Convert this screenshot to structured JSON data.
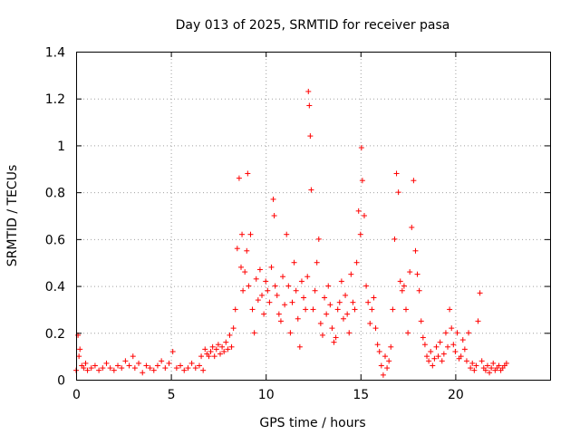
{
  "chart_data": {
    "type": "scatter",
    "title": "Day 013 of 2025, SRMTID for receiver pasa",
    "xlabel": "GPS time / hours",
    "ylabel": "SRMTID / TECUs",
    "xlim": [
      0,
      25
    ],
    "ylim": [
      0,
      1.4
    ],
    "xticks": [
      0,
      5,
      10,
      15,
      20
    ],
    "xtick_labels": [
      "0",
      "5",
      "10",
      "15",
      "20"
    ],
    "yticks": [
      0,
      0.2,
      0.4,
      0.6,
      0.8,
      1.0,
      1.2,
      1.4
    ],
    "ytick_labels": [
      "0",
      "0.2",
      "0.4",
      "0.6",
      "0.8",
      "1",
      "1.2",
      "1.4"
    ],
    "grid": true,
    "marker": "+",
    "series": [
      {
        "name": "SRMTID",
        "color": "#ff0000",
        "x": [
          0.0,
          0.1,
          0.15,
          0.2,
          0.3,
          0.4,
          0.5,
          0.6,
          0.8,
          1.0,
          1.2,
          1.4,
          1.6,
          1.8,
          2.0,
          2.2,
          2.4,
          2.6,
          2.8,
          3.0,
          3.1,
          3.3,
          3.5,
          3.7,
          3.9,
          4.1,
          4.3,
          4.5,
          4.7,
          4.9,
          5.1,
          5.3,
          5.5,
          5.7,
          5.9,
          6.1,
          6.3,
          6.5,
          6.6,
          6.7,
          6.8,
          6.9,
          7.0,
          7.1,
          7.2,
          7.3,
          7.4,
          7.5,
          7.6,
          7.7,
          7.8,
          7.9,
          8.0,
          8.1,
          8.2,
          8.3,
          8.4,
          8.5,
          8.6,
          8.7,
          8.75,
          8.8,
          8.9,
          9.0,
          9.05,
          9.1,
          9.2,
          9.3,
          9.4,
          9.5,
          9.6,
          9.7,
          9.8,
          9.9,
          10.0,
          10.1,
          10.2,
          10.3,
          10.4,
          10.45,
          10.5,
          10.6,
          10.7,
          10.8,
          10.9,
          11.0,
          11.1,
          11.2,
          11.3,
          11.4,
          11.5,
          11.6,
          11.7,
          11.8,
          11.9,
          12.0,
          12.1,
          12.2,
          12.25,
          12.3,
          12.35,
          12.4,
          12.5,
          12.6,
          12.7,
          12.8,
          12.9,
          13.0,
          13.1,
          13.2,
          13.3,
          13.4,
          13.5,
          13.6,
          13.7,
          13.8,
          13.9,
          14.0,
          14.1,
          14.2,
          14.3,
          14.4,
          14.5,
          14.6,
          14.7,
          14.8,
          14.9,
          15.0,
          15.05,
          15.1,
          15.2,
          15.3,
          15.4,
          15.5,
          15.6,
          15.7,
          15.8,
          15.9,
          16.0,
          16.1,
          16.2,
          16.3,
          16.4,
          16.5,
          16.6,
          16.7,
          16.8,
          16.9,
          17.0,
          17.1,
          17.2,
          17.3,
          17.4,
          17.5,
          17.6,
          17.7,
          17.8,
          17.9,
          18.0,
          18.1,
          18.2,
          18.3,
          18.4,
          18.5,
          18.6,
          18.7,
          18.8,
          18.9,
          19.0,
          19.1,
          19.2,
          19.3,
          19.4,
          19.5,
          19.6,
          19.7,
          19.8,
          19.9,
          20.0,
          20.1,
          20.2,
          20.3,
          20.4,
          20.5,
          20.6,
          20.7,
          20.8,
          20.9,
          21.0,
          21.1,
          21.2,
          21.3,
          21.4,
          21.5,
          21.6,
          21.7,
          21.8,
          21.9,
          22.0,
          22.1,
          22.2,
          22.3,
          22.4,
          22.5,
          22.6,
          22.7
        ],
        "y": [
          0.04,
          0.19,
          0.1,
          0.13,
          0.06,
          0.05,
          0.07,
          0.04,
          0.05,
          0.06,
          0.04,
          0.05,
          0.07,
          0.05,
          0.04,
          0.06,
          0.05,
          0.08,
          0.06,
          0.1,
          0.05,
          0.07,
          0.03,
          0.06,
          0.05,
          0.04,
          0.06,
          0.08,
          0.05,
          0.07,
          0.12,
          0.05,
          0.06,
          0.04,
          0.05,
          0.07,
          0.05,
          0.06,
          0.1,
          0.04,
          0.13,
          0.11,
          0.1,
          0.12,
          0.14,
          0.1,
          0.13,
          0.15,
          0.11,
          0.14,
          0.12,
          0.16,
          0.13,
          0.19,
          0.14,
          0.22,
          0.3,
          0.56,
          0.86,
          0.48,
          0.62,
          0.38,
          0.46,
          0.55,
          0.88,
          0.4,
          0.62,
          0.3,
          0.2,
          0.43,
          0.34,
          0.47,
          0.36,
          0.28,
          0.42,
          0.38,
          0.33,
          0.48,
          0.77,
          0.7,
          0.4,
          0.36,
          0.28,
          0.25,
          0.44,
          0.32,
          0.62,
          0.4,
          0.2,
          0.33,
          0.5,
          0.38,
          0.26,
          0.14,
          0.42,
          0.35,
          0.3,
          0.44,
          1.23,
          1.17,
          1.04,
          0.81,
          0.3,
          0.38,
          0.5,
          0.6,
          0.24,
          0.19,
          0.35,
          0.28,
          0.4,
          0.32,
          0.22,
          0.16,
          0.18,
          0.3,
          0.33,
          0.42,
          0.26,
          0.36,
          0.28,
          0.2,
          0.45,
          0.33,
          0.3,
          0.5,
          0.72,
          0.62,
          0.99,
          0.85,
          0.7,
          0.4,
          0.33,
          0.24,
          0.3,
          0.35,
          0.22,
          0.15,
          0.12,
          0.06,
          0.02,
          0.1,
          0.05,
          0.08,
          0.14,
          0.3,
          0.6,
          0.88,
          0.8,
          0.42,
          0.38,
          0.4,
          0.3,
          0.2,
          0.46,
          0.65,
          0.85,
          0.55,
          0.45,
          0.38,
          0.25,
          0.18,
          0.15,
          0.1,
          0.08,
          0.12,
          0.06,
          0.09,
          0.14,
          0.1,
          0.16,
          0.08,
          0.11,
          0.2,
          0.14,
          0.3,
          0.22,
          0.15,
          0.12,
          0.2,
          0.09,
          0.1,
          0.17,
          0.13,
          0.08,
          0.2,
          0.05,
          0.07,
          0.04,
          0.06,
          0.25,
          0.37,
          0.08,
          0.05,
          0.04,
          0.06,
          0.03,
          0.05,
          0.07,
          0.04,
          0.05,
          0.06,
          0.04,
          0.05,
          0.06,
          0.07
        ]
      }
    ]
  }
}
